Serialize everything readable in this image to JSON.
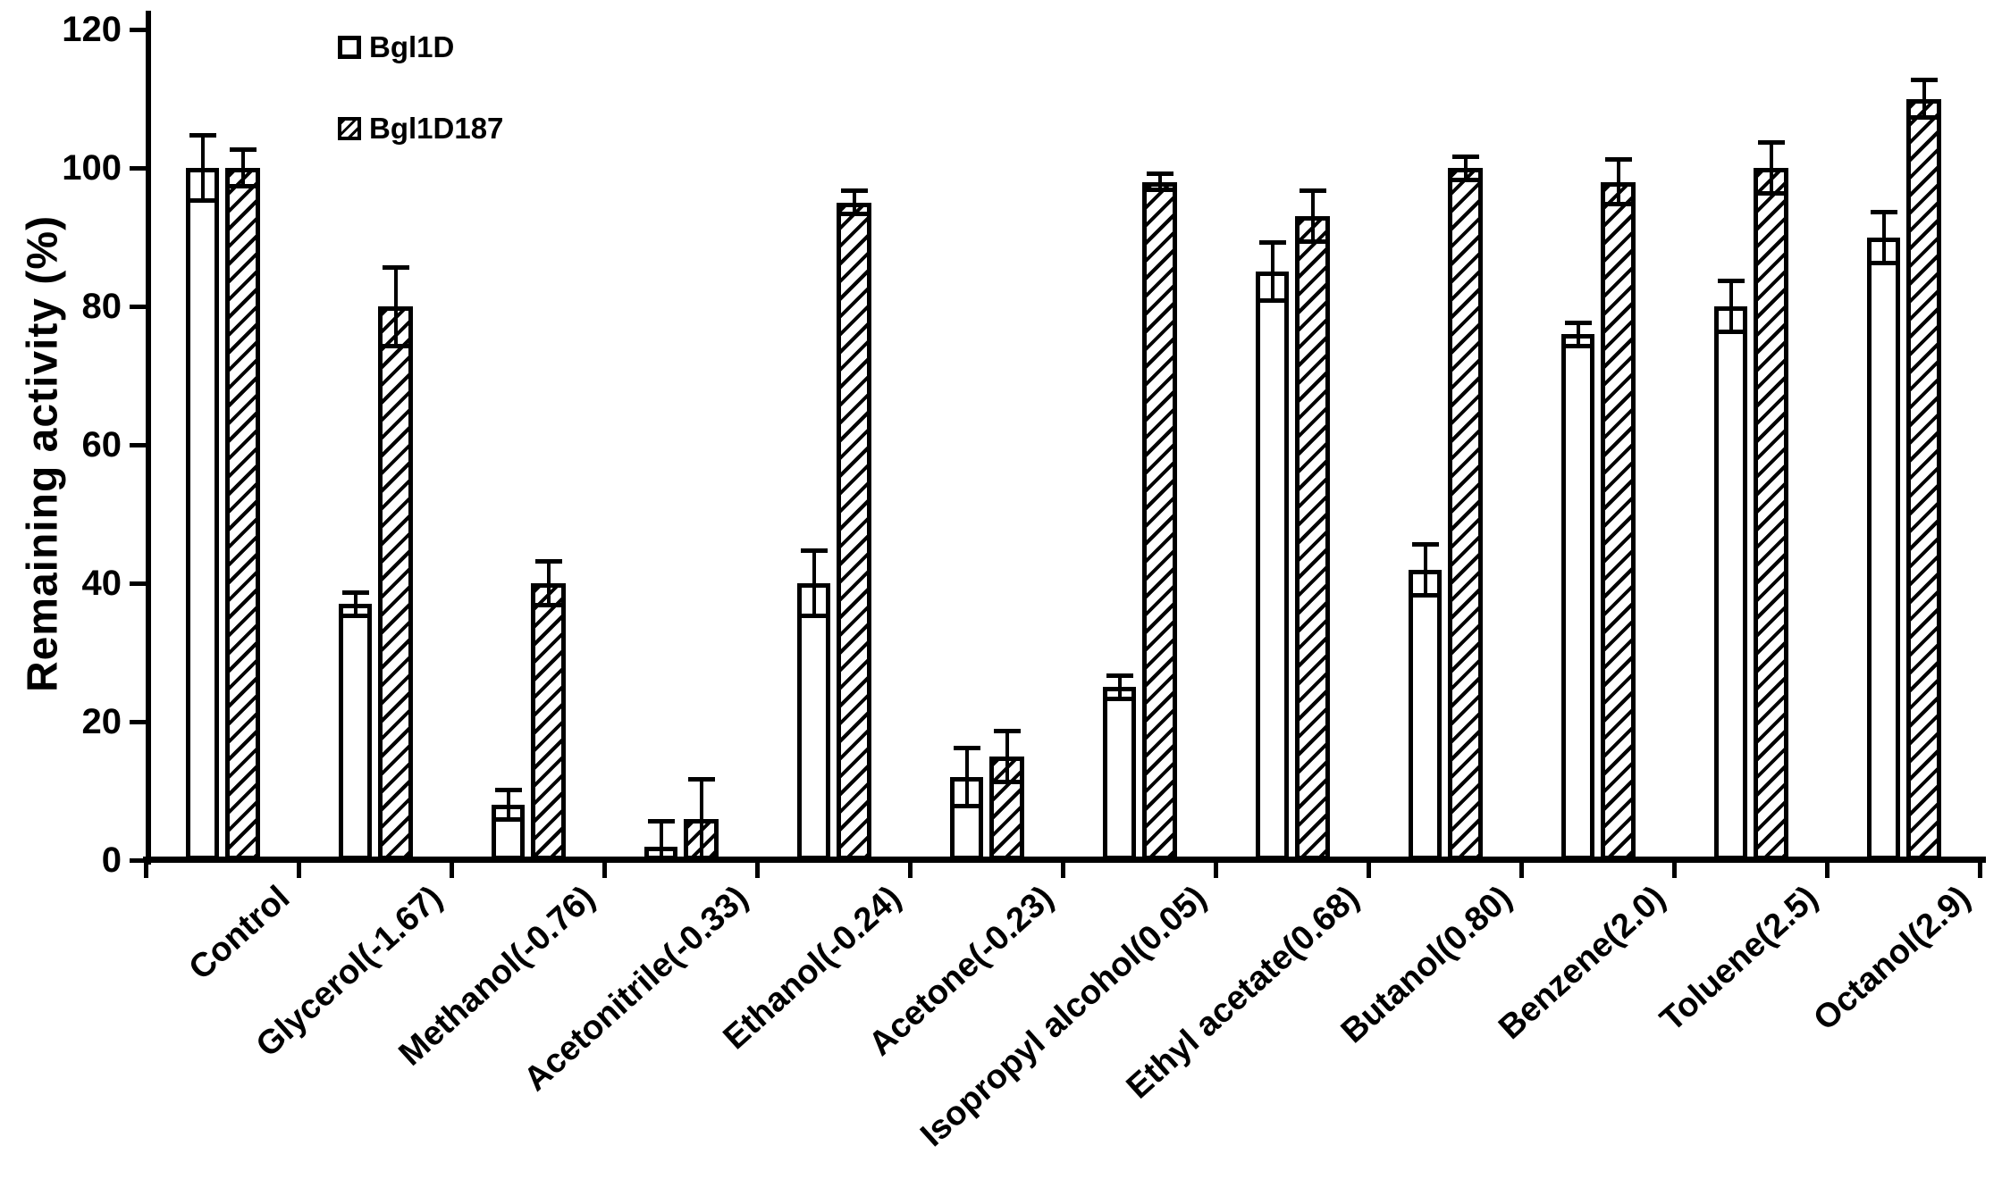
{
  "figure": {
    "background": "#ffffff",
    "ink_color": "#000000"
  },
  "chart_data": {
    "type": "bar",
    "title": "",
    "xlabel": "",
    "ylabel": "Remaining activity (%)",
    "ylim": [
      0,
      120
    ],
    "yticks": [
      0,
      20,
      40,
      60,
      80,
      100,
      120
    ],
    "grid": false,
    "legend_position": "top-left-inside",
    "categories": [
      "Control",
      "Glycerol(-1.67)",
      "Methanol(-0.76)",
      "Acetonitrile(-0.33)",
      "Ethanol(-0.24)",
      "Acetone(-0.23)",
      "Isopropyl alcohol(0.05)",
      "Ethyl acetate(0.68)",
      "Butanol(0.80)",
      "Benzene(2.0)",
      "Toluene(2.5)",
      "Octanol(2.9)"
    ],
    "series": [
      {
        "name": "Bgl1D",
        "fill": "white",
        "values": [
          100,
          37,
          8,
          2,
          40,
          12,
          25,
          85,
          42,
          76,
          80,
          90
        ],
        "errors": [
          5,
          2,
          2.5,
          4,
          5,
          4.5,
          2,
          4.5,
          4,
          2,
          4,
          4
        ]
      },
      {
        "name": "Bgl1D187",
        "fill": "hatched-diagonal",
        "values": [
          100,
          80,
          40,
          6,
          95,
          15,
          98,
          93,
          100,
          98,
          100,
          110
        ],
        "errors": [
          3,
          6,
          3.5,
          6,
          2,
          4,
          1.5,
          4,
          2,
          3.5,
          4,
          3
        ]
      }
    ]
  }
}
